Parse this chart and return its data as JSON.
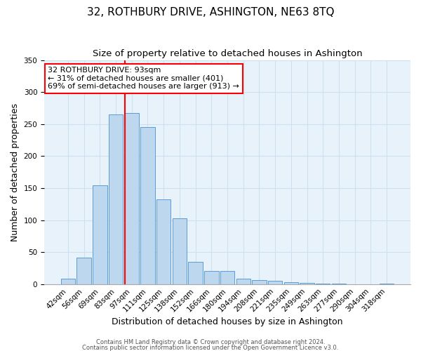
{
  "title": "32, ROTHBURY DRIVE, ASHINGTON, NE63 8TQ",
  "subtitle": "Size of property relative to detached houses in Ashington",
  "xlabel": "Distribution of detached houses by size in Ashington",
  "ylabel": "Number of detached properties",
  "bar_labels": [
    "42sqm",
    "56sqm",
    "69sqm",
    "83sqm",
    "97sqm",
    "111sqm",
    "125sqm",
    "138sqm",
    "152sqm",
    "166sqm",
    "180sqm",
    "194sqm",
    "208sqm",
    "221sqm",
    "235sqm",
    "249sqm",
    "263sqm",
    "277sqm",
    "290sqm",
    "304sqm",
    "318sqm"
  ],
  "bar_values": [
    9,
    41,
    154,
    265,
    267,
    245,
    132,
    103,
    35,
    21,
    21,
    8,
    6,
    5,
    3,
    2,
    1,
    1,
    0,
    0,
    1
  ],
  "bar_color": "#bdd7ee",
  "bar_edge_color": "#5b9bd5",
  "vline_index": 4,
  "vline_color": "red",
  "annotation_title": "32 ROTHBURY DRIVE: 93sqm",
  "annotation_line1": "← 31% of detached houses are smaller (401)",
  "annotation_line2": "69% of semi-detached houses are larger (913) →",
  "annotation_box_color": "white",
  "annotation_box_edge_color": "red",
  "grid_color": "#cde0f0",
  "background_color": "#e8f2fb",
  "footer1": "Contains HM Land Registry data © Crown copyright and database right 2024.",
  "footer2": "Contains public sector information licensed under the Open Government Licence v3.0.",
  "ylim": [
    0,
    350
  ],
  "title_fontsize": 11,
  "subtitle_fontsize": 9.5,
  "axis_label_fontsize": 9,
  "tick_fontsize": 7.5,
  "annotation_fontsize": 8,
  "footer_fontsize": 6
}
